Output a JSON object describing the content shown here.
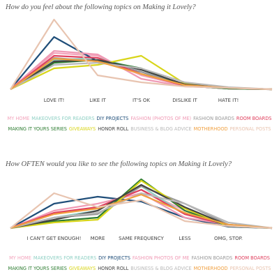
{
  "chart_data": [
    {
      "type": "line",
      "title": "How do you feel about the following topics on Making it Lovely?",
      "categories": [
        null,
        "LOVE IT!",
        "LIKE IT",
        "IT'S OK",
        "DISLIKE IT",
        "HATE IT!",
        null
      ],
      "ylim": [
        0,
        100
      ],
      "series": [
        {
          "name": "MY HOME",
          "color": "#f3a5bd",
          "values": [
            0,
            52,
            48,
            20,
            5,
            2,
            0
          ]
        },
        {
          "name": "MAKEOVERS FOR READERS",
          "color": "#8fd0c4",
          "values": [
            0,
            42,
            45,
            28,
            6,
            2,
            0
          ]
        },
        {
          "name": "DIY PROJECTS",
          "color": "#1f4e79",
          "values": [
            0,
            75,
            40,
            25,
            5,
            1,
            0
          ]
        },
        {
          "name": "FASHION (PHOTOS OF ME)",
          "color": "#f09ab5",
          "values": [
            0,
            55,
            50,
            15,
            4,
            2,
            0
          ]
        },
        {
          "name": "FASHION BOARDS",
          "color": "#9a9a9a",
          "values": [
            0,
            45,
            40,
            25,
            6,
            2,
            0
          ]
        },
        {
          "name": "ROOM BOARDS",
          "color": "#e0405e",
          "values": [
            0,
            48,
            45,
            22,
            5,
            1,
            0
          ]
        },
        {
          "name": "MAKING IT YOURS SERIES",
          "color": "#2e7d32",
          "values": [
            0,
            38,
            42,
            30,
            5,
            1,
            0
          ]
        },
        {
          "name": "GIVEAWAYS",
          "color": "#d8d51a",
          "values": [
            0,
            30,
            35,
            48,
            8,
            2,
            0
          ]
        },
        {
          "name": "HONOR ROLL",
          "color": "#444444",
          "values": [
            0,
            40,
            42,
            28,
            7,
            2,
            0
          ]
        },
        {
          "name": "BUSINESS & BLOG ADVICE",
          "color": "#b8b8b8",
          "values": [
            0,
            35,
            38,
            30,
            10,
            3,
            0
          ]
        },
        {
          "name": "MOTHERHOOD",
          "color": "#f0a040",
          "values": [
            0,
            44,
            40,
            22,
            6,
            2,
            0
          ]
        },
        {
          "name": "PERSONAL POSTS",
          "color": "#e8c4b0",
          "values": [
            0,
            100,
            20,
            10,
            4,
            2,
            0
          ]
        }
      ]
    },
    {
      "type": "line",
      "title": "How OFTEN would you like to see the following topics on Making it Lovely?",
      "categories": [
        null,
        "I CAN'T GET ENOUGH!",
        "MORE",
        "SAME FREQUENCY",
        "LESS",
        "OMG, STOP.",
        null
      ],
      "ylim": [
        0,
        100
      ],
      "series": [
        {
          "name": "MY HOME",
          "color": "#f3a5bd",
          "values": [
            0,
            20,
            30,
            55,
            25,
            5,
            0
          ]
        },
        {
          "name": "MAKEOVERS FOR READERS",
          "color": "#8fd0c4",
          "values": [
            0,
            15,
            25,
            60,
            20,
            3,
            0
          ]
        },
        {
          "name": "DIY PROJECTS",
          "color": "#1f4e79",
          "values": [
            0,
            35,
            45,
            38,
            15,
            2,
            0
          ]
        },
        {
          "name": "FASHION PHOTOS OF ME",
          "color": "#f09ab5",
          "values": [
            0,
            25,
            35,
            50,
            15,
            5,
            0
          ]
        },
        {
          "name": "FASHION BOARDS",
          "color": "#9a9a9a",
          "values": [
            0,
            15,
            20,
            60,
            35,
            5,
            0
          ]
        },
        {
          "name": "ROOM BOARDS",
          "color": "#e0405e",
          "values": [
            0,
            22,
            30,
            55,
            20,
            4,
            0
          ]
        },
        {
          "name": "MAKING IT YOURS SERIES",
          "color": "#2e7d32",
          "values": [
            0,
            10,
            15,
            70,
            25,
            3,
            0
          ]
        },
        {
          "name": "GIVEAWAYS",
          "color": "#d8d51a",
          "values": [
            0,
            8,
            12,
            68,
            28,
            3,
            0
          ]
        },
        {
          "name": "HONOR ROLL",
          "color": "#444444",
          "values": [
            0,
            12,
            25,
            62,
            30,
            4,
            0
          ]
        },
        {
          "name": "BUSINESS & BLOG ADVICE",
          "color": "#b8b8b8",
          "values": [
            0,
            15,
            22,
            50,
            35,
            8,
            0
          ]
        },
        {
          "name": "MOTHERHOOD",
          "color": "#f0a040",
          "values": [
            0,
            20,
            28,
            48,
            22,
            5,
            0
          ]
        },
        {
          "name": "PERSONAL POSTS",
          "color": "#e8c4b0",
          "values": [
            0,
            50,
            30,
            40,
            10,
            3,
            0
          ]
        }
      ]
    }
  ]
}
